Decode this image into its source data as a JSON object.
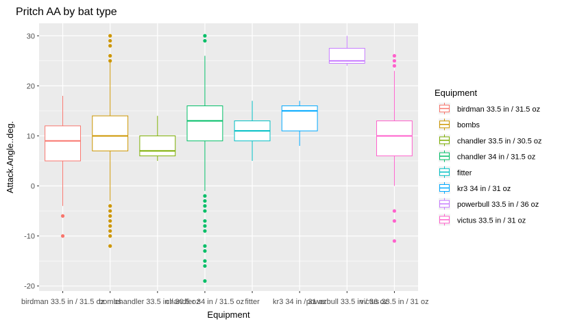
{
  "chart_data": {
    "type": "boxplot",
    "title": "Pritch AA by bat type",
    "xlabel": "Equipment",
    "ylabel": "Attack.Angle..deg.",
    "ylim": [
      -21,
      32.5
    ],
    "yticks": [
      -20,
      -10,
      0,
      10,
      20,
      30
    ],
    "grid": true,
    "legend": {
      "title": "Equipment",
      "position": "right"
    },
    "categories": [
      "birdman  33.5 in / 31.5 oz",
      "bombs",
      "chandler 33.5 in / 30.5 oz",
      "chandler 34 in / 31.5 oz",
      "fitter",
      "kr3 34 in / 31 oz",
      "powerbull 33.5 in / 36 oz",
      "victus 33.5 in / 31 oz"
    ],
    "colors": [
      "#F8766D",
      "#CD9600",
      "#7CAE00",
      "#00BE67",
      "#00BFC4",
      "#00A9FF",
      "#C77CFF",
      "#FF61CC"
    ],
    "boxes": [
      {
        "q1": 5,
        "median": 9,
        "q3": 12,
        "lower": -4,
        "upper": 18,
        "outliers": [
          -6,
          -10
        ]
      },
      {
        "q1": 7,
        "median": 10,
        "q3": 14,
        "lower": -3,
        "upper": 25,
        "outliers": [
          26,
          25,
          28,
          30,
          29,
          -4,
          -5,
          -6,
          -7,
          -8,
          -9,
          -10,
          -12
        ]
      },
      {
        "q1": 6,
        "median": 7,
        "q3": 10,
        "lower": 5,
        "upper": 14,
        "outliers": []
      },
      {
        "q1": 9,
        "median": 13,
        "q3": 16,
        "lower": -1,
        "upper": 26,
        "outliers": [
          29,
          30,
          -2,
          -3,
          -4,
          -5,
          -7,
          -8,
          -9,
          -12,
          -13,
          -15,
          -16,
          -19
        ]
      },
      {
        "q1": 9,
        "median": 11,
        "q3": 13,
        "lower": 5,
        "upper": 17,
        "outliers": []
      },
      {
        "q1": 11,
        "median": 15,
        "q3": 16,
        "lower": 8,
        "upper": 17,
        "outliers": []
      },
      {
        "q1": 24.5,
        "median": 25,
        "q3": 27.5,
        "lower": 24,
        "upper": 30,
        "outliers": []
      },
      {
        "q1": 6,
        "median": 10,
        "q3": 13,
        "lower": 0,
        "upper": 23,
        "outliers": [
          24,
          25,
          26,
          -5,
          -7,
          -11
        ]
      }
    ]
  }
}
